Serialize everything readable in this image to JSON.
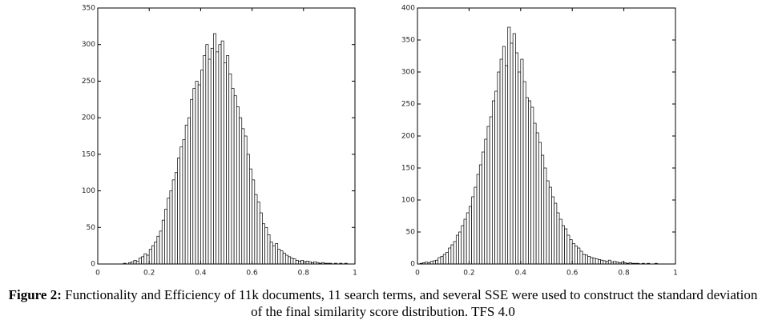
{
  "chart_data": [
    {
      "type": "histogram",
      "bins": [
        0,
        0.01,
        0.02,
        0.03,
        0.04,
        0.05,
        0.06,
        0.07,
        0.08,
        0.09,
        0.1,
        0.11,
        0.12,
        0.13,
        0.14,
        0.15,
        0.16,
        0.17,
        0.18,
        0.19,
        0.2,
        0.21,
        0.22,
        0.23,
        0.24,
        0.25,
        0.26,
        0.27,
        0.28,
        0.29,
        0.3,
        0.31,
        0.32,
        0.33,
        0.34,
        0.35,
        0.36,
        0.37,
        0.38,
        0.39,
        0.4,
        0.41,
        0.42,
        0.43,
        0.44,
        0.45,
        0.46,
        0.47,
        0.48,
        0.49,
        0.5,
        0.51,
        0.52,
        0.53,
        0.54,
        0.55,
        0.56,
        0.57,
        0.58,
        0.59,
        0.6,
        0.61,
        0.62,
        0.63,
        0.64,
        0.65,
        0.66,
        0.67,
        0.68,
        0.69,
        0.7,
        0.71,
        0.72,
        0.73,
        0.74,
        0.75,
        0.76,
        0.77,
        0.78,
        0.79,
        0.8,
        0.81,
        0.82,
        0.83,
        0.84,
        0.85,
        0.86,
        0.87,
        0.88,
        0.89,
        0.9,
        0.91,
        0.92,
        0.93,
        0.94,
        0.95,
        0.96,
        0.97,
        0.98,
        0.99,
        1
      ],
      "values": [
        0,
        0,
        0,
        0,
        0,
        0,
        0,
        0,
        0,
        0,
        1,
        0,
        2,
        3,
        5,
        4,
        8,
        10,
        14,
        12,
        20,
        25,
        30,
        38,
        45,
        60,
        75,
        90,
        100,
        115,
        125,
        145,
        160,
        170,
        190,
        200,
        225,
        240,
        250,
        245,
        265,
        285,
        300,
        280,
        295,
        315,
        290,
        300,
        305,
        275,
        285,
        260,
        240,
        230,
        215,
        200,
        185,
        175,
        150,
        130,
        115,
        95,
        85,
        70,
        55,
        50,
        40,
        30,
        25,
        28,
        20,
        18,
        15,
        12,
        10,
        8,
        7,
        5,
        4,
        5,
        3,
        4,
        3,
        2,
        3,
        2,
        1,
        2,
        1,
        1,
        1,
        0,
        1,
        0,
        1,
        0,
        1,
        0,
        0,
        0
      ],
      "color": "#ffffff",
      "edgecolor": "#000000",
      "xlim": [
        0,
        1
      ],
      "xticks": [
        0,
        0.2,
        0.4,
        0.6,
        0.8,
        1
      ],
      "ylim": [
        0,
        350
      ],
      "yticks": [
        0,
        50,
        100,
        150,
        200,
        250,
        300,
        350
      ]
    },
    {
      "type": "histogram",
      "bins": [
        0,
        0.01,
        0.02,
        0.03,
        0.04,
        0.05,
        0.06,
        0.07,
        0.08,
        0.09,
        0.1,
        0.11,
        0.12,
        0.13,
        0.14,
        0.15,
        0.16,
        0.17,
        0.18,
        0.19,
        0.2,
        0.21,
        0.22,
        0.23,
        0.24,
        0.25,
        0.26,
        0.27,
        0.28,
        0.29,
        0.3,
        0.31,
        0.32,
        0.33,
        0.34,
        0.35,
        0.36,
        0.37,
        0.38,
        0.39,
        0.4,
        0.41,
        0.42,
        0.43,
        0.44,
        0.45,
        0.46,
        0.47,
        0.48,
        0.49,
        0.5,
        0.51,
        0.52,
        0.53,
        0.54,
        0.55,
        0.56,
        0.57,
        0.58,
        0.59,
        0.6,
        0.61,
        0.62,
        0.63,
        0.64,
        0.65,
        0.66,
        0.67,
        0.68,
        0.69,
        0.7,
        0.71,
        0.72,
        0.73,
        0.74,
        0.75,
        0.76,
        0.77,
        0.78,
        0.79,
        0.8,
        0.81,
        0.82,
        0.83,
        0.84,
        0.85,
        0.86,
        0.87,
        0.88,
        0.89,
        0.9,
        0.91,
        0.92,
        0.93,
        0.94,
        0.95,
        0.96,
        0.97,
        0.98,
        0.99,
        1
      ],
      "values": [
        0,
        1,
        2,
        3,
        2,
        4,
        5,
        6,
        10,
        12,
        15,
        18,
        25,
        30,
        35,
        45,
        50,
        60,
        70,
        80,
        90,
        105,
        120,
        140,
        155,
        175,
        195,
        215,
        230,
        255,
        270,
        300,
        320,
        340,
        310,
        370,
        345,
        360,
        330,
        300,
        320,
        285,
        260,
        255,
        245,
        220,
        205,
        190,
        170,
        150,
        130,
        120,
        105,
        95,
        80,
        70,
        60,
        55,
        45,
        38,
        32,
        28,
        25,
        20,
        15,
        14,
        12,
        10,
        9,
        8,
        7,
        6,
        5,
        4,
        6,
        3,
        4,
        3,
        2,
        3,
        2,
        1,
        2,
        1,
        1,
        1,
        0,
        1,
        0,
        1,
        0,
        0,
        1,
        0,
        0,
        0,
        0,
        0,
        0,
        0
      ],
      "color": "#ffffff",
      "edgecolor": "#000000",
      "xlim": [
        0,
        1
      ],
      "xticks": [
        0,
        0.2,
        0.4,
        0.6,
        0.8,
        1
      ],
      "ylim": [
        0,
        400
      ],
      "yticks": [
        0,
        50,
        100,
        150,
        200,
        250,
        300,
        350,
        400
      ]
    }
  ],
  "caption": {
    "label": "Figure 2:",
    "text": "Functionality and Efficiency of 11k documents, 11 search terms, and several SSE were used to construct the standard deviation of the final similarity score distribution. TFS 4.0"
  }
}
